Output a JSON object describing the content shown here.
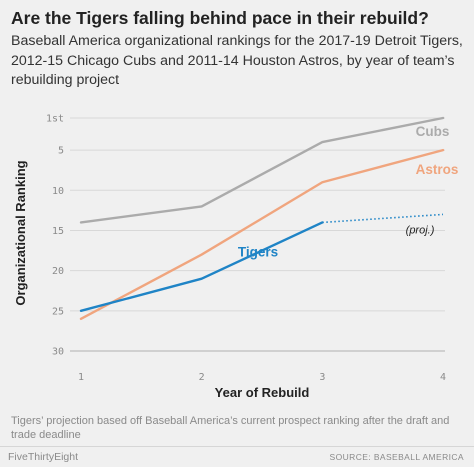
{
  "header": {
    "title": "Are the Tigers falling behind pace in their rebuild?",
    "subtitle": "Baseball America organizational rankings for the 2017-19 Detroit Tigers, 2012-15 Chicago Cubs and 2011-14 Houston Astros, by year of team’s rebuilding project"
  },
  "chart_data": {
    "type": "line",
    "xlabel": "Year of Rebuild",
    "ylabel": "Organizational Ranking",
    "x": [
      1,
      2,
      3,
      4
    ],
    "x_tick_labels": [
      "1",
      "2",
      "3",
      "4"
    ],
    "xlim": [
      1,
      4
    ],
    "ylim": [
      30,
      1
    ],
    "y_inverted": true,
    "y_ticks": [
      1,
      5,
      10,
      15,
      20,
      25,
      30
    ],
    "y_tick_labels": [
      "1st",
      "5",
      "10",
      "15",
      "20",
      "25",
      "30"
    ],
    "grid": "horizontal",
    "series": [
      {
        "name": "Cubs",
        "values": [
          14,
          12,
          4,
          1
        ],
        "color": "#ababab"
      },
      {
        "name": "Astros",
        "values": [
          26,
          18,
          9,
          5
        ],
        "color": "#f0a57e"
      },
      {
        "name": "Tigers",
        "values": [
          25,
          21,
          14,
          null
        ],
        "color": "#1f84c6"
      }
    ],
    "projection": {
      "series": "Tigers",
      "label": "(proj.)",
      "x": [
        3,
        4
      ],
      "values": [
        14,
        13
      ],
      "style": "dotted",
      "color": "#1f84c6"
    }
  },
  "footer": {
    "note": "Tigers’ projection based off Baseball America’s current prospect ranking after the draft and trade deadline",
    "brand": "FiveThirtyEight",
    "source": "SOURCE: BASEBALL AMERICA"
  }
}
